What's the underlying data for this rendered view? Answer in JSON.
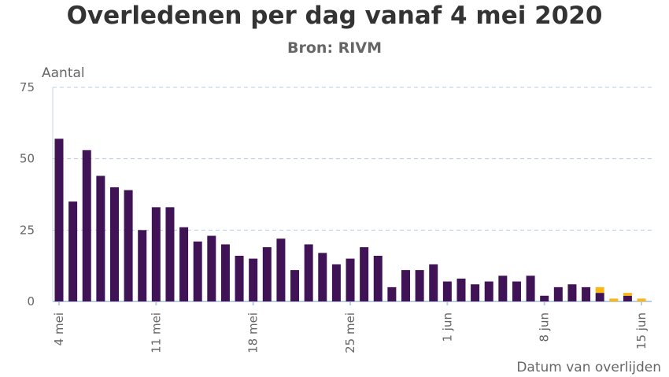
{
  "chart_data": {
    "type": "bar",
    "stacked": true,
    "title": "Overledenen per dag vanaf 4 mei 2020",
    "subtitle": "Bron: RIVM",
    "xlabel": "Datum van overlijden",
    "ylabel": "Aantal",
    "ylim": [
      0,
      75
    ],
    "yticks": [
      "0",
      "25",
      "50",
      "75"
    ],
    "grid": true,
    "x_tick_labels": [
      {
        "index": 0,
        "label": "4 mei"
      },
      {
        "index": 7,
        "label": "11 mei"
      },
      {
        "index": 14,
        "label": "18 mei"
      },
      {
        "index": 21,
        "label": "25 mei"
      },
      {
        "index": 28,
        "label": "1 jun"
      },
      {
        "index": 35,
        "label": "8 jun"
      },
      {
        "index": 42,
        "label": "15 jun"
      }
    ],
    "start_date": "4 mei 2020",
    "series": [
      {
        "color": "#3f1356",
        "values": [
          57,
          35,
          53,
          44,
          40,
          39,
          25,
          33,
          33,
          26,
          21,
          23,
          20,
          16,
          15,
          19,
          22,
          11,
          20,
          17,
          13,
          15,
          19,
          16,
          5,
          11,
          11,
          13,
          7,
          8,
          6,
          7,
          9,
          7,
          9,
          2,
          5,
          6,
          5,
          3,
          0,
          2,
          0
        ]
      },
      {
        "color": "#fbb614",
        "values": [
          0,
          0,
          0,
          0,
          0,
          0,
          0,
          0,
          0,
          0,
          0,
          0,
          0,
          0,
          0,
          0,
          0,
          0,
          0,
          0,
          0,
          0,
          0,
          0,
          0,
          0,
          0,
          0,
          0,
          0,
          0,
          0,
          0,
          0,
          0,
          0,
          0,
          0,
          0,
          2,
          1,
          1,
          1
        ]
      }
    ]
  }
}
